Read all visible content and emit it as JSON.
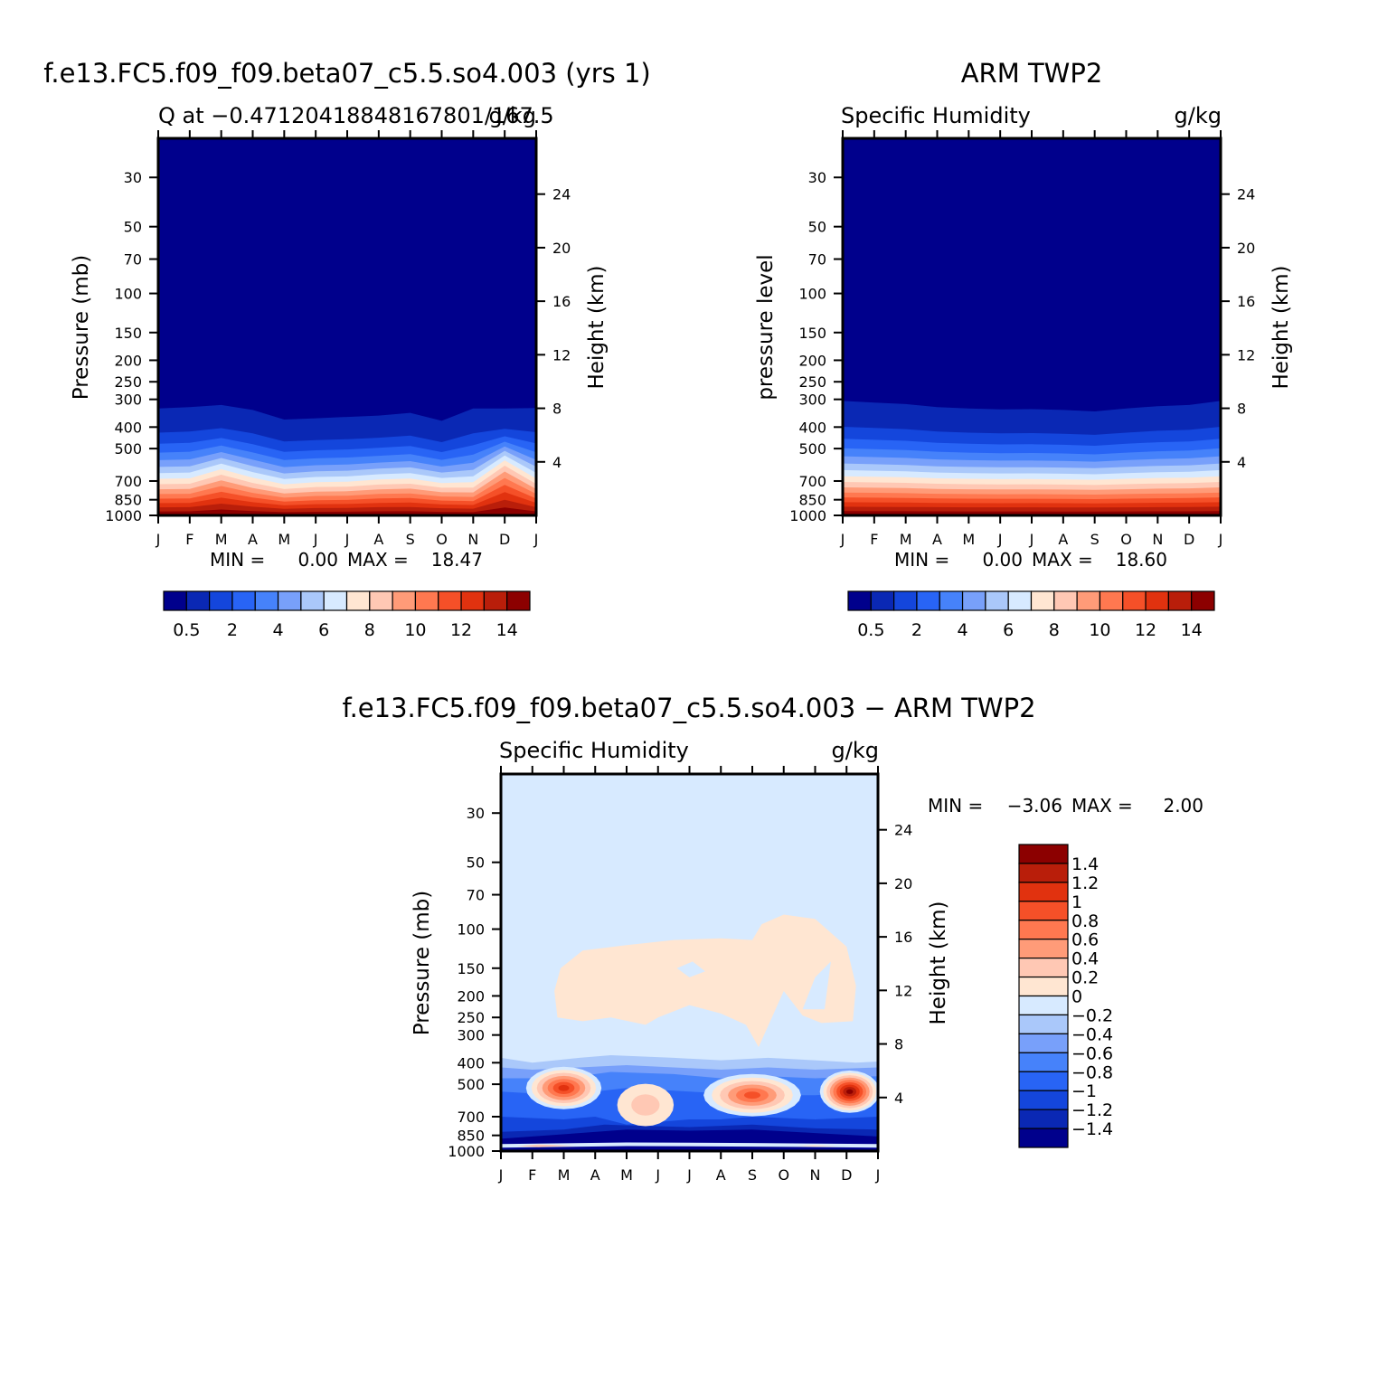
{
  "colors": {
    "abs_scale": [
      "#00008c",
      "#0a28b4",
      "#1446dc",
      "#2864f5",
      "#4682fa",
      "#78a0fa",
      "#aac8fa",
      "#d7eaff",
      "#ffe6d2",
      "#ffc8b4",
      "#ff9b78",
      "#ff7850",
      "#f55028",
      "#e1320f",
      "#b91e0a",
      "#8c0000"
    ],
    "diff_scale": [
      "#00008c",
      "#0a28b4",
      "#1446dc",
      "#2864f5",
      "#4682fa",
      "#78a0fa",
      "#aac8fa",
      "#d7eaff",
      "#ffe6d2",
      "#ffc8b4",
      "#ff9b78",
      "#ff7850",
      "#f55028",
      "#e1320f",
      "#b91e0a",
      "#8c0000"
    ]
  },
  "chart_data": [
    {
      "type": "heatmap",
      "title": "f.e13.FC5.f09_f09.beta07_c5.5.so4.003 (yrs 1)",
      "subtitle_left": "Q at −0.47120418848167801/167.5",
      "subtitle_right": "g/kg",
      "ylabel": "Pressure (mb)",
      "ylabel_right": "Height (km)",
      "yscale": "log",
      "ylim": [
        1000,
        20
      ],
      "x_ticks": [
        "J",
        "F",
        "M",
        "A",
        "M",
        "J",
        "J",
        "A",
        "S",
        "O",
        "N",
        "D",
        "J"
      ],
      "y_ticks": [
        "30",
        "50",
        "70",
        "100",
        "150",
        "200",
        "250",
        "300",
        "400",
        "500",
        "700",
        "850",
        "1000"
      ],
      "y_ticks_right": [
        "24",
        "20",
        "16",
        "12",
        "8",
        "4"
      ],
      "min_label": "MIN =",
      "min_value": "0.00",
      "max_label": "MAX =",
      "max_value": "18.47",
      "colorbar_labels": [
        "0.5",
        "2",
        "4",
        "6",
        "8",
        "10",
        "12",
        "14"
      ],
      "contour_levels": [
        0.5,
        1,
        2,
        3,
        4,
        5,
        6,
        7,
        8,
        9,
        10,
        11,
        12,
        13,
        14
      ],
      "bottom_pressure": [
        330,
        325,
        318,
        335,
        370,
        365,
        360,
        355,
        345,
        375,
        330,
        330,
        328
      ],
      "profile_shape": [
        0,
        0,
        0.25,
        0.05,
        -0.05,
        0,
        0,
        0.05,
        0.05,
        0,
        -0.1,
        0.55,
        0
      ],
      "min": 0.0,
      "max": 18.47
    },
    {
      "type": "heatmap",
      "title": "ARM TWP2",
      "subtitle_left": "Specific Humidity",
      "subtitle_right": "g/kg",
      "ylabel": "pressure level",
      "ylabel_right": "Height (km)",
      "yscale": "log",
      "ylim": [
        1000,
        20
      ],
      "x_ticks": [
        "J",
        "F",
        "M",
        "A",
        "M",
        "J",
        "J",
        "A",
        "S",
        "O",
        "N",
        "D",
        "J"
      ],
      "y_ticks": [
        "30",
        "50",
        "70",
        "100",
        "150",
        "200",
        "250",
        "300",
        "400",
        "500",
        "700",
        "850",
        "1000"
      ],
      "y_ticks_right": [
        "24",
        "20",
        "16",
        "12",
        "8",
        "4"
      ],
      "min_label": "MIN =",
      "min_value": "0.00",
      "max_label": "MAX =",
      "max_value": "18.60",
      "colorbar_labels": [
        "0.5",
        "2",
        "4",
        "6",
        "8",
        "10",
        "12",
        "14"
      ],
      "contour_levels": [
        0.5,
        1,
        2,
        3,
        4,
        5,
        6,
        7,
        8,
        9,
        10,
        11,
        12,
        13,
        14
      ],
      "bottom_pressure": [
        305,
        310,
        315,
        325,
        330,
        333,
        332,
        335,
        340,
        330,
        322,
        318,
        305
      ],
      "profile_shape": [
        0,
        0,
        0,
        0,
        0,
        0,
        0,
        0,
        0,
        0,
        0,
        0,
        0
      ],
      "min": 0.0,
      "max": 18.6
    },
    {
      "type": "heatmap",
      "title": "f.e13.FC5.f09_f09.beta07_c5.5.so4.003 − ARM TWP2",
      "subtitle_left": "Specific Humidity",
      "subtitle_right": "g/kg",
      "ylabel": "Pressure (mb)",
      "ylabel_right": "Height (km)",
      "yscale": "log",
      "ylim": [
        1000,
        20
      ],
      "x_ticks": [
        "J",
        "F",
        "M",
        "A",
        "M",
        "J",
        "J",
        "A",
        "S",
        "O",
        "N",
        "D",
        "J"
      ],
      "y_ticks": [
        "30",
        "50",
        "70",
        "100",
        "150",
        "200",
        "250",
        "300",
        "400",
        "500",
        "700",
        "850",
        "1000"
      ],
      "y_ticks_right": [
        "24",
        "20",
        "16",
        "12",
        "8",
        "4"
      ],
      "min_label": "MIN =",
      "min_value": "−3.06",
      "max_label": "MAX =",
      "max_value": "2.00",
      "colorbar_labels": [
        "1.4",
        "1.2",
        "1",
        "0.8",
        "0.6",
        "0.4",
        "0.2",
        "0",
        "−0.2",
        "−0.4",
        "−0.6",
        "−0.8",
        "−1",
        "−1.2",
        "−1.4"
      ],
      "contour_levels": [
        -1.4,
        -1.2,
        -1,
        -0.8,
        -0.6,
        -0.4,
        -0.2,
        0,
        0.2,
        0.4,
        0.6,
        0.8,
        1,
        1.2,
        1.4
      ],
      "positive_maxima": [
        {
          "month": "M",
          "pressure": 520,
          "value": 1.5
        },
        {
          "month": "A-S",
          "pressure": 560,
          "value": 0.9
        },
        {
          "month": "D",
          "pressure": 540,
          "value": 2.0
        }
      ],
      "negative_layer_pressure": [
        750,
        1000
      ],
      "upper_positive_region_pressure": [
        100,
        260
      ],
      "min": -3.06,
      "max": 2.0
    }
  ]
}
